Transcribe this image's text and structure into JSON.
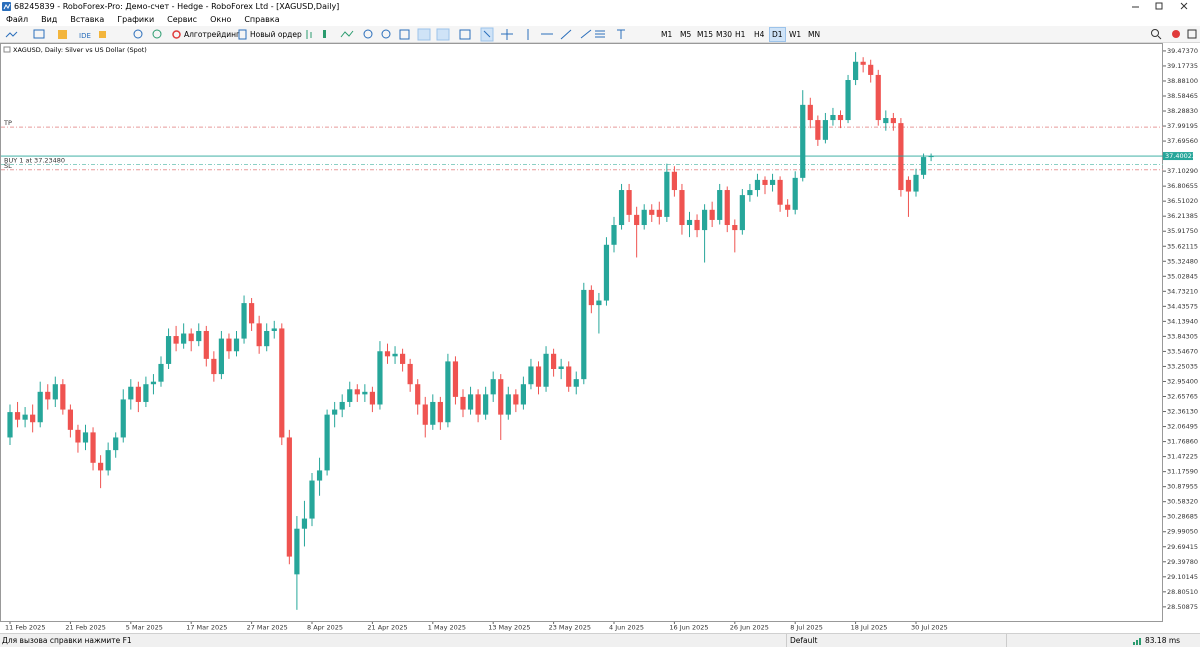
{
  "window": {
    "title": "68245839 - RoboForex-Pro: Демо-счет - Hedge - RoboForex Ltd - [XAGUSD,Daily]"
  },
  "menu": [
    "Файл",
    "Вид",
    "Вставка",
    "Графики",
    "Сервис",
    "Окно",
    "Справка"
  ],
  "toolbar": {
    "ide": "IDE",
    "algo": "Алготрейдинг",
    "new_order": "Новый ордер",
    "timeframes": [
      "M1",
      "M5",
      "M15",
      "M30",
      "H1",
      "H4",
      "D1",
      "W1",
      "MN"
    ],
    "active_timeframe": "D1"
  },
  "chart_data": {
    "type": "candlestick",
    "title": "XAGUSD, Daily: Silver vs US Dollar (Spot)",
    "up_color": "#26a69a",
    "down_color": "#ef5350",
    "grid": false,
    "categories": [
      "11 Feb 2025",
      null,
      null,
      null,
      null,
      null,
      null,
      null,
      "21 Feb 2025",
      null,
      null,
      null,
      null,
      null,
      null,
      null,
      "5 Mar 2025",
      null,
      null,
      null,
      null,
      null,
      null,
      null,
      "17 Mar 2025",
      null,
      null,
      null,
      null,
      null,
      null,
      null,
      "27 Mar 2025",
      null,
      null,
      null,
      null,
      null,
      null,
      null,
      "8 Apr 2025",
      null,
      null,
      null,
      null,
      null,
      null,
      null,
      "21 Apr 2025",
      null,
      null,
      null,
      null,
      null,
      null,
      null,
      "1 May 2025",
      null,
      null,
      null,
      null,
      null,
      null,
      null,
      "13 May 2025",
      null,
      null,
      null,
      null,
      null,
      null,
      null,
      "23 May 2025",
      null,
      null,
      null,
      null,
      null,
      null,
      null,
      "4 Jun 2025",
      null,
      null,
      null,
      null,
      null,
      null,
      null,
      "16 Jun 2025",
      null,
      null,
      null,
      null,
      null,
      null,
      null,
      "26 Jun 2025",
      null,
      null,
      null,
      null,
      null,
      null,
      null,
      "8 Jul 2025",
      null,
      null,
      null,
      null,
      null,
      null,
      null,
      "18 Jul 2025",
      null,
      null,
      null,
      null,
      null,
      null,
      null,
      "30 Jul 2025",
      null,
      null
    ],
    "open": [
      31.85,
      32.35,
      32.2,
      32.3,
      32.15,
      32.75,
      32.6,
      32.9,
      32.4,
      32.0,
      31.75,
      31.95,
      31.35,
      31.2,
      31.6,
      31.85,
      32.6,
      32.85,
      32.55,
      32.9,
      32.95,
      33.3,
      33.85,
      33.7,
      33.9,
      33.75,
      33.95,
      33.4,
      33.1,
      33.8,
      33.55,
      33.8,
      34.5,
      34.1,
      33.65,
      33.95,
      34.0,
      31.85,
      29.15,
      30.05,
      30.25,
      31.0,
      31.2,
      32.3,
      32.4,
      32.55,
      32.8,
      32.7,
      32.75,
      32.5,
      33.55,
      33.45,
      33.5,
      33.3,
      32.9,
      32.5,
      32.1,
      32.55,
      32.15,
      33.35,
      32.65,
      32.4,
      32.7,
      32.3,
      32.7,
      33.0,
      32.3,
      32.7,
      32.5,
      32.9,
      33.25,
      32.85,
      33.5,
      33.2,
      33.25,
      32.85,
      33.0,
      34.76,
      34.46,
      34.55,
      35.65,
      36.04,
      36.73,
      36.24,
      36.04,
      36.34,
      36.34,
      36.2,
      37.09,
      36.73,
      36.04,
      36.14,
      35.94,
      36.34,
      36.14,
      36.73,
      36.04,
      35.94,
      36.63,
      36.73,
      36.93,
      36.83,
      36.93,
      36.44,
      36.34,
      36.97,
      38.41,
      38.11,
      37.72,
      38.11,
      38.21,
      38.11,
      38.9,
      39.26,
      39.2,
      39.0,
      38.05,
      38.15,
      38.05,
      36.93,
      36.7,
      37.03,
      37.38
    ],
    "high": [
      32.5,
      32.55,
      32.45,
      32.5,
      32.95,
      32.9,
      33.05,
      33.0,
      32.5,
      32.1,
      32.1,
      32.05,
      31.5,
      31.75,
      31.95,
      32.8,
      33.0,
      32.95,
      33.05,
      33.1,
      33.45,
      34.0,
      34.05,
      34.1,
      34.0,
      34.1,
      34.05,
      33.55,
      33.95,
      33.9,
      33.95,
      34.65,
      34.6,
      34.25,
      34.1,
      34.15,
      34.1,
      32.0,
      30.3,
      30.6,
      31.15,
      31.45,
      32.4,
      32.55,
      32.7,
      32.95,
      32.9,
      32.9,
      32.85,
      33.75,
      33.7,
      33.65,
      33.6,
      33.4,
      33.0,
      32.65,
      32.7,
      32.65,
      33.5,
      33.45,
      32.8,
      32.85,
      32.8,
      32.85,
      33.15,
      33.1,
      32.85,
      32.8,
      33.05,
      33.4,
      33.35,
      33.65,
      33.6,
      33.4,
      33.35,
      33.15,
      34.9,
      34.85,
      34.7,
      35.8,
      36.2,
      36.85,
      36.85,
      36.4,
      36.45,
      36.45,
      36.5,
      37.25,
      37.2,
      36.85,
      36.3,
      36.25,
      36.45,
      36.5,
      36.85,
      36.8,
      36.15,
      36.75,
      36.85,
      37.05,
      37.0,
      37.05,
      37.0,
      36.55,
      37.1,
      38.7,
      38.55,
      38.2,
      38.25,
      38.35,
      38.3,
      39.0,
      39.45,
      39.35,
      39.3,
      39.1,
      38.3,
      38.25,
      38.15,
      37.0,
      37.15,
      37.45,
      37.45
    ],
    "low": [
      31.7,
      32.05,
      32.05,
      31.95,
      32.05,
      32.4,
      32.45,
      32.3,
      31.85,
      31.55,
      31.6,
      31.2,
      30.85,
      31.1,
      31.45,
      31.75,
      32.4,
      32.35,
      32.45,
      32.7,
      32.85,
      33.2,
      33.55,
      33.6,
      33.55,
      33.65,
      33.25,
      32.95,
      33.0,
      33.4,
      33.45,
      33.7,
      33.95,
      33.5,
      33.55,
      33.8,
      31.7,
      29.35,
      28.45,
      29.7,
      30.1,
      30.7,
      31.1,
      32.05,
      32.25,
      32.45,
      32.55,
      32.55,
      32.35,
      32.4,
      33.3,
      33.3,
      33.15,
      32.75,
      32.3,
      31.85,
      32.0,
      32.0,
      32.05,
      32.5,
      32.25,
      32.3,
      32.15,
      32.2,
      32.55,
      31.8,
      32.2,
      32.35,
      32.4,
      32.8,
      32.7,
      32.75,
      33.05,
      33.0,
      32.75,
      32.7,
      32.9,
      34.3,
      33.9,
      34.45,
      35.5,
      35.95,
      36.1,
      35.4,
      35.95,
      36.1,
      36.05,
      36.1,
      36.6,
      35.85,
      35.8,
      35.8,
      35.3,
      36.0,
      36.05,
      35.9,
      35.5,
      35.85,
      36.5,
      36.6,
      36.65,
      36.7,
      36.3,
      36.2,
      36.25,
      36.9,
      37.95,
      37.6,
      37.65,
      38.0,
      37.95,
      38.05,
      38.8,
      39.05,
      38.85,
      38.0,
      37.9,
      37.9,
      36.6,
      36.2,
      36.6,
      36.95,
      37.3
    ],
    "close": [
      32.35,
      32.2,
      32.3,
      32.15,
      32.75,
      32.6,
      32.9,
      32.4,
      32.0,
      31.75,
      31.95,
      31.35,
      31.2,
      31.6,
      31.85,
      32.6,
      32.85,
      32.55,
      32.9,
      32.95,
      33.3,
      33.85,
      33.7,
      33.9,
      33.75,
      33.95,
      33.4,
      33.1,
      33.8,
      33.55,
      33.8,
      34.5,
      34.1,
      33.65,
      33.95,
      34.0,
      31.85,
      29.5,
      30.05,
      30.25,
      31.0,
      31.2,
      32.3,
      32.4,
      32.55,
      32.8,
      32.7,
      32.75,
      32.5,
      33.55,
      33.45,
      33.5,
      33.3,
      32.9,
      32.5,
      32.1,
      32.55,
      32.15,
      33.35,
      32.65,
      32.4,
      32.7,
      32.3,
      32.7,
      33.0,
      32.3,
      32.7,
      32.5,
      32.9,
      33.25,
      32.85,
      33.5,
      33.2,
      33.25,
      32.85,
      33.0,
      34.76,
      34.46,
      34.55,
      35.65,
      36.04,
      36.73,
      36.24,
      36.04,
      36.34,
      36.24,
      36.2,
      37.09,
      36.73,
      36.04,
      36.14,
      35.94,
      36.34,
      36.14,
      36.73,
      36.04,
      35.94,
      36.63,
      36.73,
      36.93,
      36.83,
      36.93,
      36.44,
      36.34,
      36.97,
      38.41,
      38.11,
      37.72,
      38.11,
      38.21,
      38.11,
      38.9,
      39.26,
      39.2,
      39.0,
      38.11,
      38.15,
      38.05,
      36.73,
      36.7,
      37.03,
      37.38,
      37.4
    ],
    "ylim": [
      28.21,
      39.63
    ],
    "yticks": [
      {
        "value": 39.4737,
        "label": "39.47370"
      },
      39.17735,
      {
        "value": 38.881,
        "label": "38.88100"
      },
      38.58465,
      {
        "value": 38.2883,
        "label": "38.28830"
      },
      37.99195,
      {
        "value": 37.6956,
        "label": "37.69560"
      },
      {
        "value": 37.1029,
        "label": "37.10290"
      },
      36.80655,
      {
        "value": 36.5102,
        "label": "36.51020"
      },
      36.21385,
      {
        "value": 35.9175,
        "label": "35.91750"
      },
      35.62115,
      {
        "value": 35.3248,
        "label": "35.32480"
      },
      35.02845,
      {
        "value": 34.7321,
        "label": "34.73210"
      },
      34.43575,
      {
        "value": 34.1394,
        "label": "34.13940"
      },
      33.84305,
      {
        "value": 33.5467,
        "label": "33.54670"
      },
      33.25035,
      {
        "value": 32.954,
        "label": "32.95400"
      },
      32.65765,
      {
        "value": 32.3613,
        "label": "32.36130"
      },
      32.06495,
      {
        "value": 31.7686,
        "label": "31.76860"
      },
      31.47225,
      {
        "value": 31.1759,
        "label": "31.17590"
      },
      30.87955,
      {
        "value": 30.5832,
        "label": "30.58320"
      },
      30.28685,
      {
        "value": 29.9905,
        "label": "29.99050"
      },
      29.69415,
      {
        "value": 29.3978,
        "label": "29.39780"
      },
      29.10145,
      {
        "value": 28.8051,
        "label": "28.80510"
      },
      28.50875
    ],
    "levels": [
      {
        "label": "TP",
        "value": 37.97,
        "color": "#e89a9a"
      },
      {
        "label": "BUY 1 at 37.23480",
        "value": 37.2348,
        "color": "#8ccfc4"
      },
      {
        "label": "SL",
        "value": 37.13,
        "color": "#e89a9a"
      }
    ],
    "last_price": 37.40023,
    "last_price_color": "#26a69a"
  },
  "status_bar": {
    "help": "Для вызова справки нажмите F1",
    "profile": "Default",
    "ping": "83.18 ms"
  }
}
